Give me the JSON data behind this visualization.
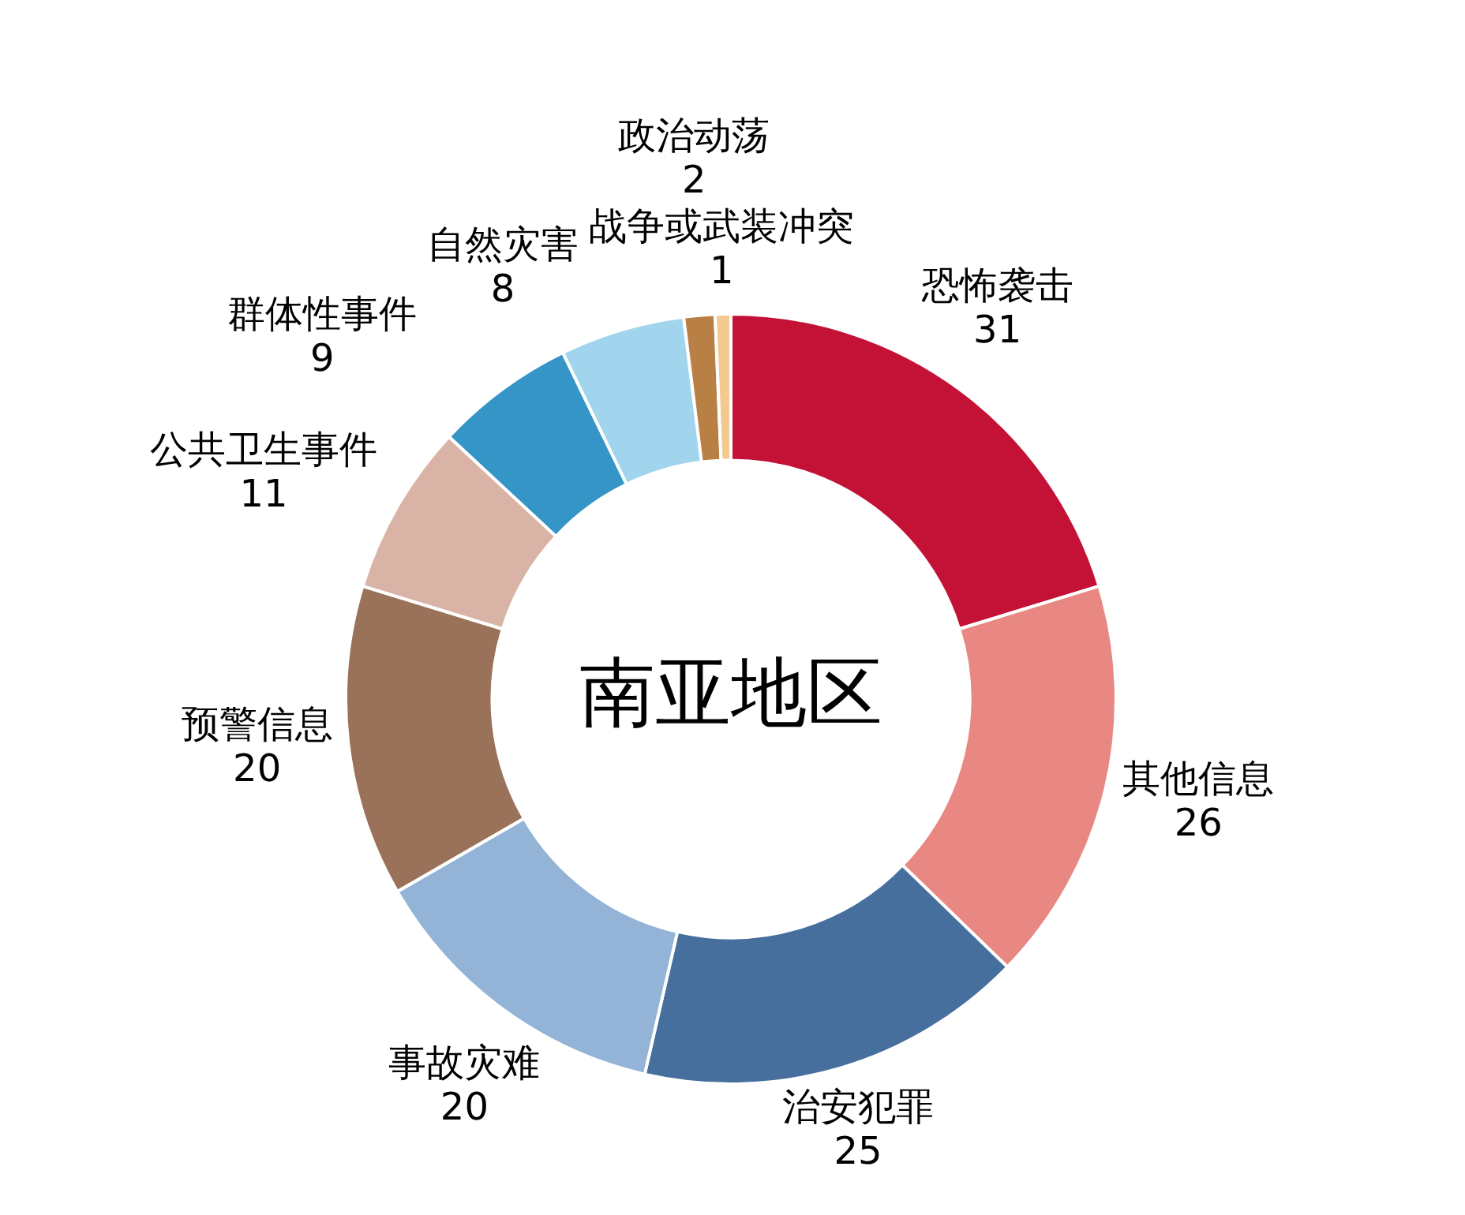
{
  "chart_data": {
    "type": "donut",
    "title": "南亚地区",
    "categories": [
      "恐怖袭击",
      "其他信息",
      "治安犯罪",
      "事故灾难",
      "预警信息",
      "公共卫生事件",
      "群体性事件",
      "自然灾害",
      "政治动荡",
      "战争或武装冲突"
    ],
    "values": [
      31,
      26,
      25,
      20,
      20,
      11,
      9,
      8,
      2,
      1
    ],
    "colors": [
      "#c41236",
      "#e98883",
      "#466f9e",
      "#93b3d7",
      "#9a7259",
      "#d9b3a5",
      "#3595c6",
      "#a1d5ee",
      "#b98045",
      "#f2c98f"
    ],
    "data_labels": true,
    "legend": false
  }
}
